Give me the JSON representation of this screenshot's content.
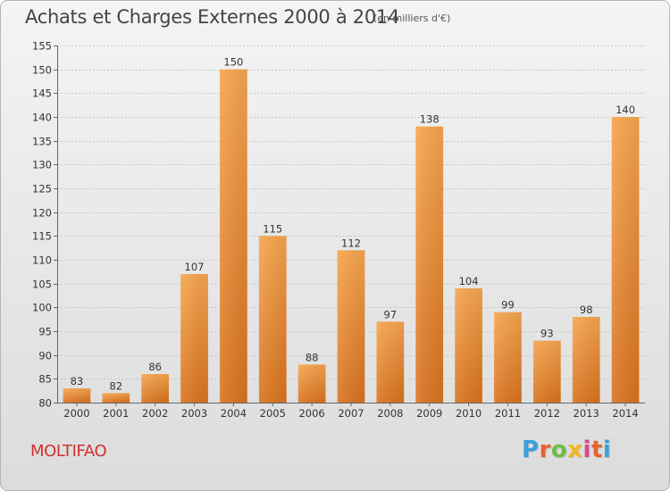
{
  "header": {
    "title": "Achats et Charges Externes 2000 à 2014",
    "unit": "(en milliers d'€)"
  },
  "footer": {
    "city": "MOLTIFAO",
    "logo_letters": [
      "P",
      "r",
      "o",
      "x",
      "i",
      "t",
      "i"
    ],
    "logo_colors": [
      "#3aa0dc",
      "#e8622c",
      "#6dbe45",
      "#f1b81c",
      "#d94a8c",
      "#e8622c",
      "#3aa0dc"
    ]
  },
  "colors": {
    "bar_light": "#f7a54e",
    "bar_dark": "#d9731f",
    "grid": "#c8c8c8",
    "axis": "#666666",
    "title": "#444444",
    "city": "#d0312d"
  },
  "chart_data": {
    "type": "bar",
    "title": "Achats et Charges Externes 2000 à 2014",
    "subtitle": "(en milliers d'€)",
    "xlabel": "",
    "ylabel": "",
    "categories": [
      "2000",
      "2001",
      "2002",
      "2003",
      "2004",
      "2005",
      "2006",
      "2007",
      "2008",
      "2009",
      "2010",
      "2011",
      "2012",
      "2013",
      "2014"
    ],
    "values": [
      83,
      82,
      86,
      107,
      150,
      115,
      88,
      112,
      97,
      138,
      104,
      99,
      93,
      98,
      140
    ],
    "ylim": [
      80,
      155
    ],
    "yticks": [
      80,
      85,
      90,
      95,
      100,
      105,
      110,
      115,
      120,
      125,
      130,
      135,
      140,
      145,
      150,
      155
    ],
    "grid": true,
    "data_labels": true
  }
}
